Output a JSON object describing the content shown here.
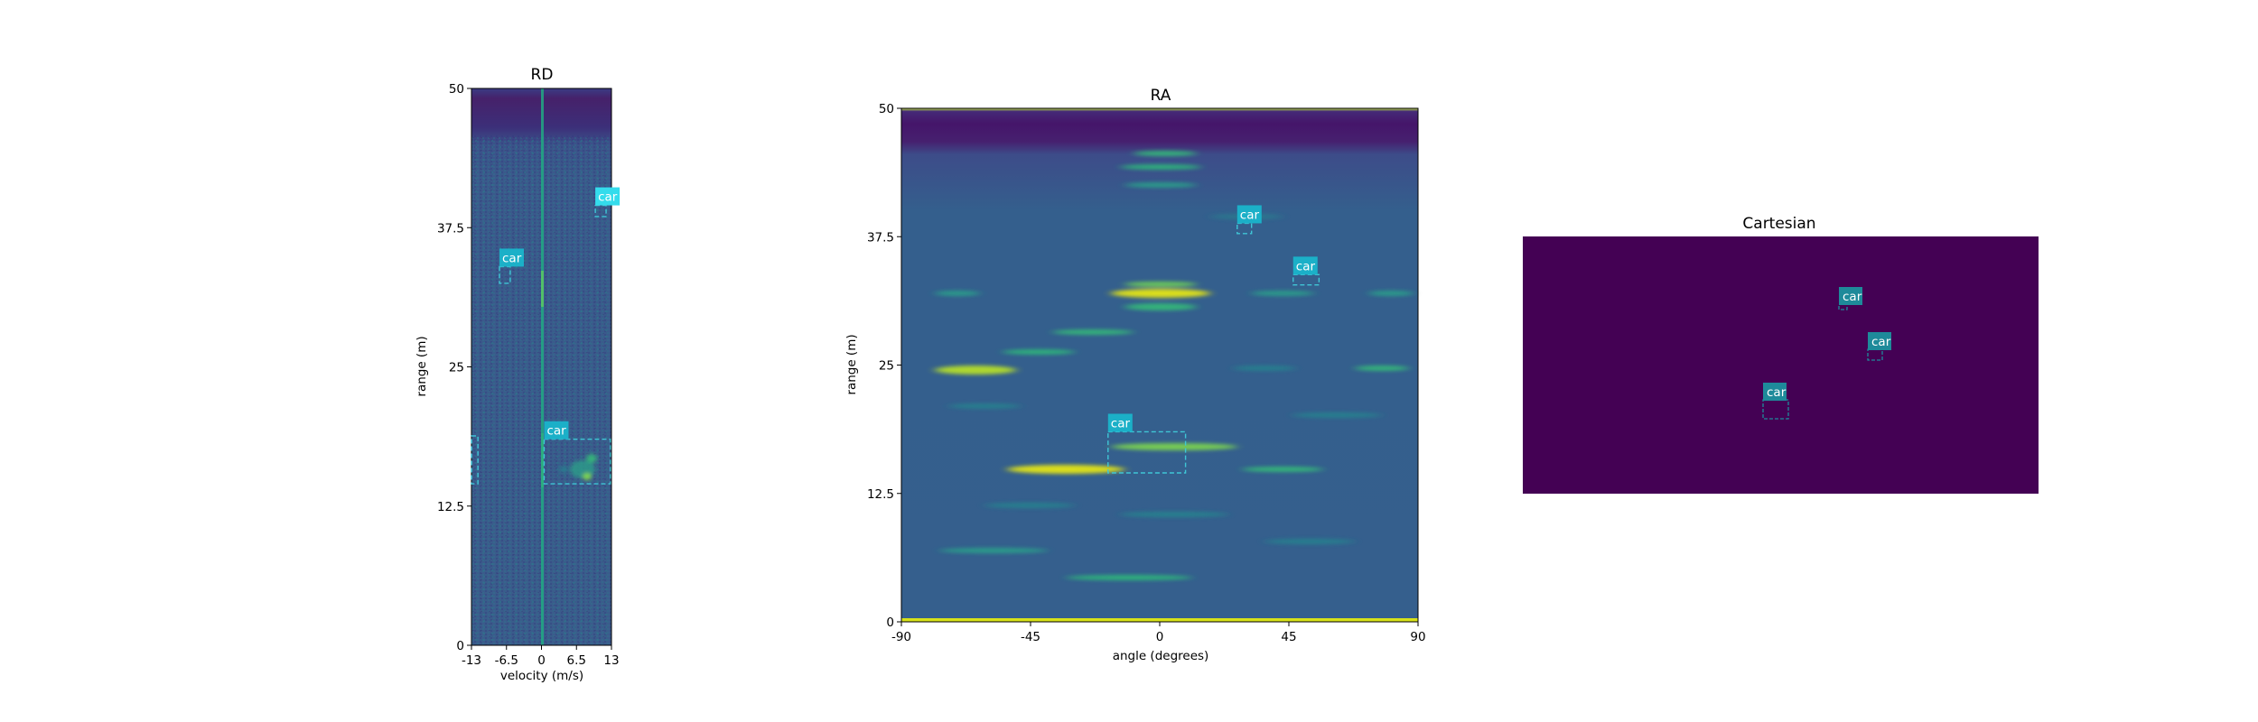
{
  "chart_data": [
    {
      "type": "heatmap",
      "title": "RD",
      "xlabel": "velocity (m/s)",
      "ylabel": "range (m)",
      "xlim": [
        -13,
        13
      ],
      "ylim": [
        0,
        50
      ],
      "xticks": [
        "-13",
        "-6.5",
        "0",
        "6.5",
        "13"
      ],
      "yticks": [
        "0",
        "12.5",
        "25",
        "37.5",
        "50"
      ],
      "colormap": "viridis",
      "detections": [
        {
          "label": "car",
          "x0": -7.8,
          "x1": -5.8,
          "y0": 32.5,
          "y1": 34.0,
          "label_color": "#1bb0c8"
        },
        {
          "label": "car",
          "x0": 0.5,
          "x1": 12.8,
          "y0": 14.5,
          "y1": 18.5,
          "label_color": "#1bb0c8"
        },
        {
          "label": "car",
          "x0": 10.0,
          "x1": 12.0,
          "y0": 38.5,
          "y1": 39.5,
          "label_color": "#34dcec"
        }
      ],
      "extra_boxes": [
        {
          "x0": -13,
          "x1": -11.8,
          "y0": 14.5,
          "y1": 18.8
        }
      ]
    },
    {
      "type": "heatmap",
      "title": "RA",
      "xlabel": "angle (degrees)",
      "ylabel": "range (m)",
      "xlim": [
        -90,
        90
      ],
      "ylim": [
        0,
        50
      ],
      "xticks": [
        "-90",
        "-45",
        "0",
        "45",
        "90"
      ],
      "yticks": [
        "0",
        "12.5",
        "25",
        "37.5",
        "50"
      ],
      "colormap": "viridis",
      "detections": [
        {
          "label": "car",
          "x0": -18,
          "x1": 9,
          "y0": 14.5,
          "y1": 18.5,
          "label_color": "#1bb0c8"
        },
        {
          "label": "car",
          "x0": 27,
          "x1": 32,
          "y0": 37.8,
          "y1": 38.8,
          "label_color": "#1bb0c8"
        },
        {
          "label": "car",
          "x0": 46.5,
          "x1": 55.5,
          "y0": 32.8,
          "y1": 33.8,
          "label_color": "#1bb0c8"
        }
      ]
    },
    {
      "type": "heatmap",
      "title": "Cartesian",
      "background_color": "#440154",
      "detections": [
        {
          "label": "car",
          "label_color": "#1e8a9a"
        },
        {
          "label": "car",
          "label_color": "#1e8a9a"
        },
        {
          "label": "car",
          "label_color": "#1e8a9a"
        }
      ]
    }
  ]
}
